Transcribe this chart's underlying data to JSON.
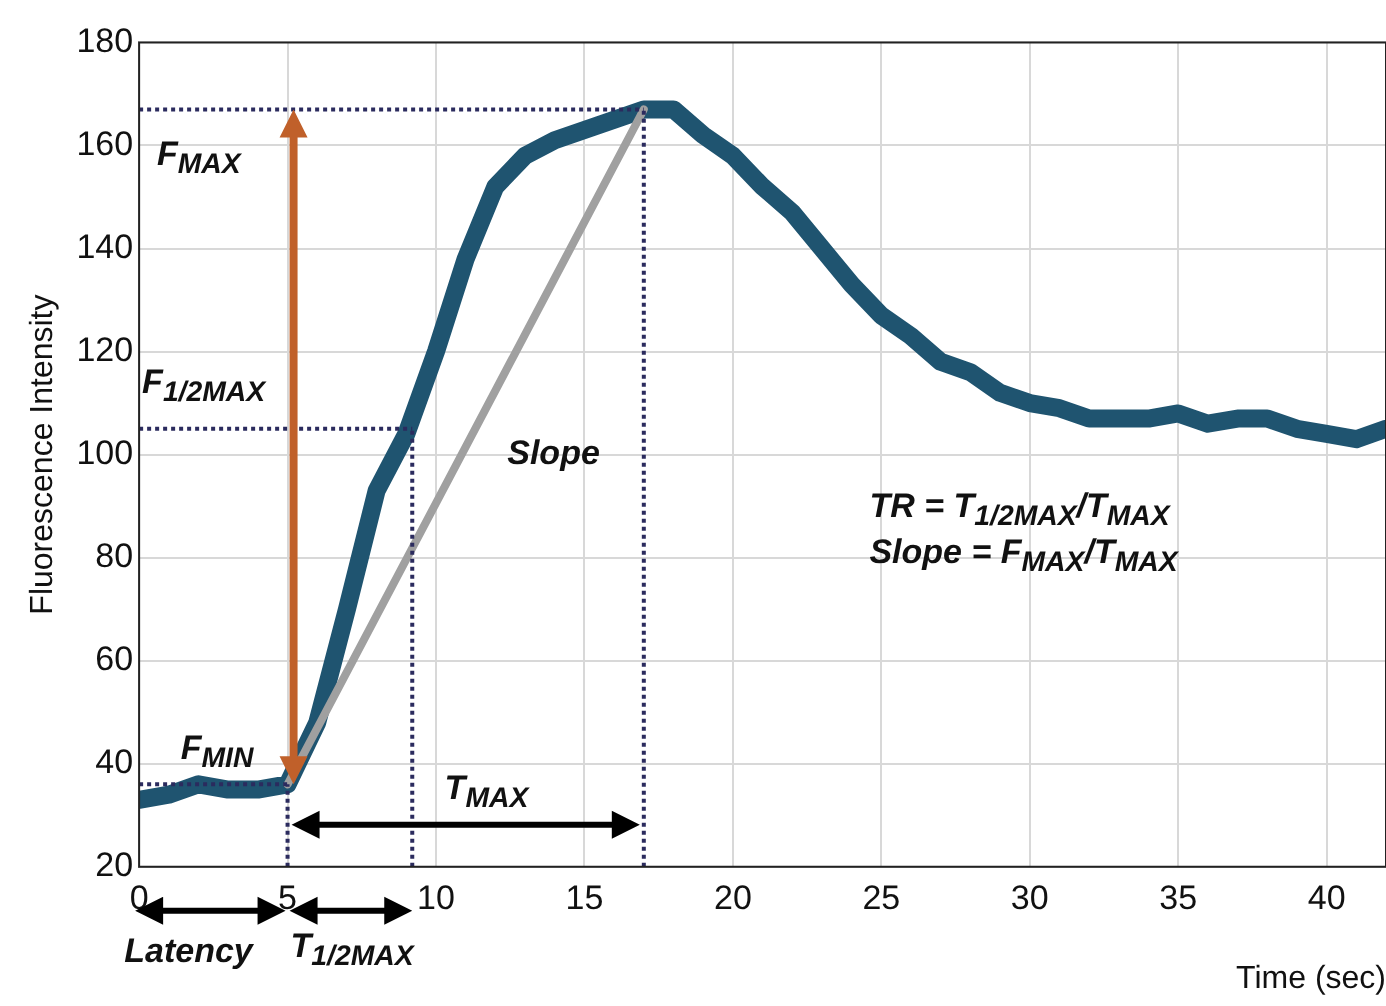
{
  "chart_data": {
    "type": "line",
    "xlabel": "Time (sec)",
    "ylabel": "Fluorescence Intensity",
    "xlim": [
      0,
      42
    ],
    "ylim": [
      20,
      180
    ],
    "xticks": [
      0,
      5,
      10,
      15,
      20,
      25,
      30,
      35,
      40
    ],
    "yticks": [
      20,
      40,
      60,
      80,
      100,
      120,
      140,
      160,
      180
    ],
    "grid": true,
    "marker": "none",
    "line_style": "solid",
    "series": [
      {
        "type": "line",
        "color": "#1f5470",
        "x": [
          0,
          1,
          2,
          3,
          4,
          5,
          6,
          7,
          8,
          9,
          10,
          11,
          12,
          13,
          14,
          15,
          16,
          17,
          18,
          19,
          20,
          21,
          22,
          23,
          24,
          25,
          26,
          27,
          28,
          29,
          30,
          31,
          32,
          33,
          34,
          35,
          36,
          37,
          38,
          39,
          40,
          41,
          42
        ],
        "values": [
          33,
          34,
          36,
          35,
          35,
          36,
          48,
          70,
          93,
          104,
          120,
          138,
          152,
          158,
          161,
          163,
          165,
          167,
          167,
          162,
          158,
          152,
          147,
          140,
          133,
          127,
          123,
          118,
          116,
          112,
          110,
          109,
          107,
          107,
          107,
          108,
          106,
          107,
          107,
          105,
          104,
          103,
          105
        ]
      },
      {
        "type": "line",
        "color": "#a0a0a0",
        "x": [
          5,
          17
        ],
        "values": [
          36,
          167
        ]
      }
    ],
    "ref_lines": [
      {
        "axis": "y",
        "value": 167,
        "color": "#2b2b5e",
        "line_style": "dotted"
      },
      {
        "axis": "y",
        "value": 105,
        "color": "#2b2b5e",
        "line_style": "dotted"
      },
      {
        "axis": "y",
        "value": 36,
        "color": "#2b2b5e",
        "line_style": "dotted"
      },
      {
        "axis": "x",
        "value": 5,
        "color": "#2b2b5e",
        "line_style": "dotted"
      },
      {
        "axis": "x",
        "value": 9.2,
        "color": "#2b2b5e",
        "line_style": "dotted"
      },
      {
        "axis": "x",
        "value": 17,
        "color": "#2b2b5e",
        "line_style": "dotted"
      }
    ],
    "annotations": [
      "F$_{MAX}$",
      "F$_{1/2MAX}$",
      "F$_{MIN}$",
      "Slope",
      "T$_{MAX}$",
      "TR = T$_{1/2MAX}$/T$_{MAX}$",
      "Slope = F$_{MAX}$/T$_{MAX}$",
      "Latency",
      "T$_{1/2MAX}$"
    ]
  }
}
